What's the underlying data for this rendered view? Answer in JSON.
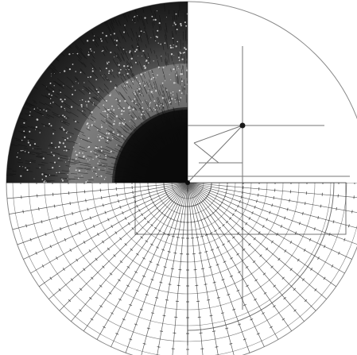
{
  "figure": {
    "kind": "geometric-construction-drawing",
    "quadrants": {
      "upper_left": "radial-stippled-shading",
      "upper_right": "construction-lines",
      "lower": "radial-spoke-grid"
    },
    "colors": {
      "ink": "#1a1a1a",
      "dark_ink": "#0c0c0c",
      "light_line": "#8a8a8a",
      "paper": "#ffffff"
    }
  }
}
